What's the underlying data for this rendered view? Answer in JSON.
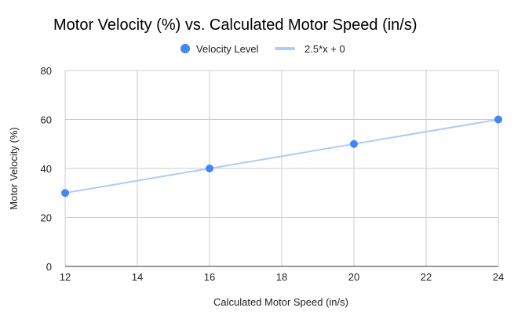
{
  "chart_data": {
    "type": "scatter",
    "title": "Motor Velocity (%) vs. Calculated Motor Speed (in/s)",
    "xlabel": "Calculated Motor Speed (in/s)",
    "ylabel": "Motor Velocity (%)",
    "xlim": [
      12,
      24
    ],
    "ylim": [
      0,
      80
    ],
    "xticks": [
      12,
      14,
      16,
      18,
      20,
      22,
      24
    ],
    "yticks": [
      0,
      20,
      40,
      60,
      80
    ],
    "grid": true,
    "legend_position": "top",
    "series": [
      {
        "name": "Velocity Level",
        "kind": "scatter",
        "color": "#4285f4",
        "points": [
          {
            "x": 12,
            "y": 30
          },
          {
            "x": 16,
            "y": 40
          },
          {
            "x": 20,
            "y": 50
          },
          {
            "x": 24,
            "y": 60
          }
        ]
      },
      {
        "name": "2.5*x + 0",
        "kind": "trendline",
        "color": "#aecbfa",
        "slope": 2.5,
        "intercept": 0
      }
    ]
  }
}
